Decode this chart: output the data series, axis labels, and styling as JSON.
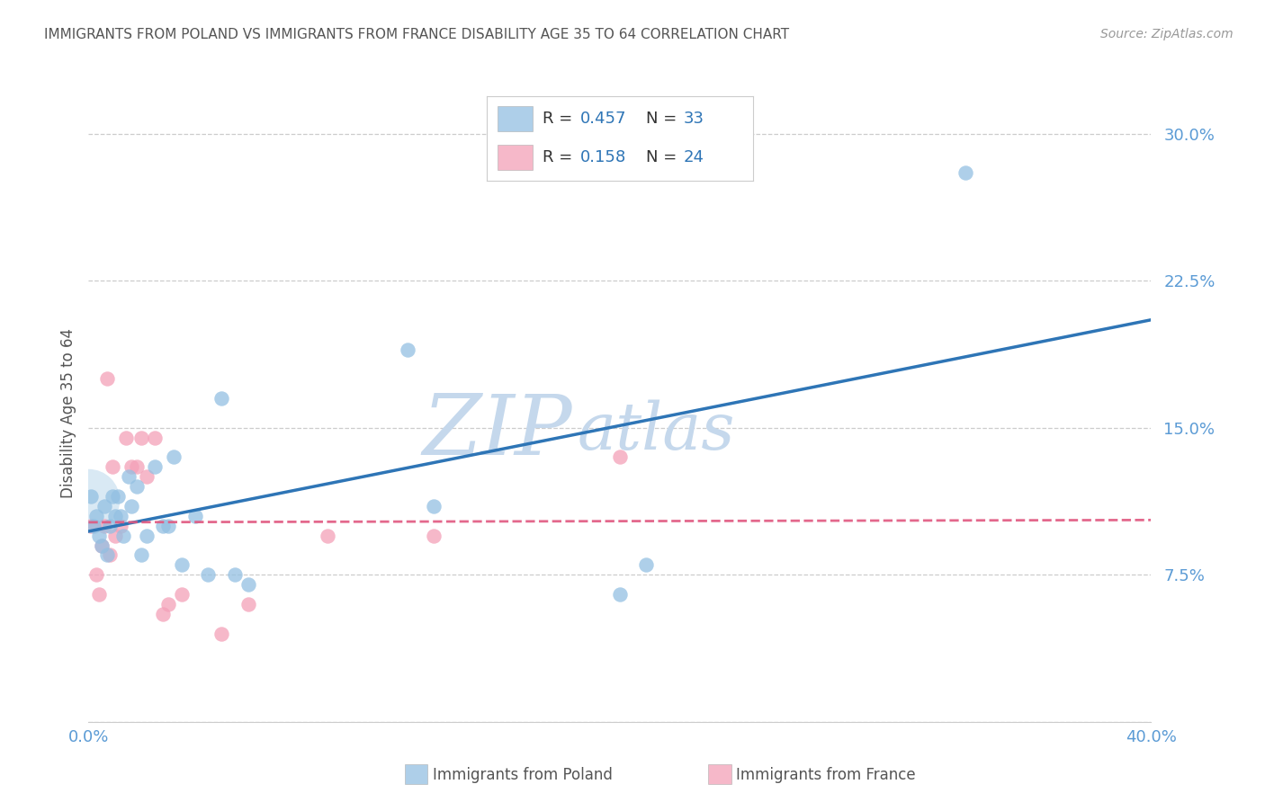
{
  "title": "IMMIGRANTS FROM POLAND VS IMMIGRANTS FROM FRANCE DISABILITY AGE 35 TO 64 CORRELATION CHART",
  "source": "Source: ZipAtlas.com",
  "ylabel": "Disability Age 35 to 64",
  "xlim": [
    0.0,
    0.4
  ],
  "ylim": [
    0.0,
    0.315
  ],
  "yticks": [
    0.0,
    0.075,
    0.15,
    0.225,
    0.3
  ],
  "ytick_labels": [
    "",
    "7.5%",
    "15.0%",
    "22.5%",
    "30.0%"
  ],
  "xticks": [
    0.0,
    0.05,
    0.1,
    0.15,
    0.2,
    0.25,
    0.3,
    0.35,
    0.4
  ],
  "xtick_labels": [
    "0.0%",
    "",
    "",
    "",
    "",
    "",
    "",
    "",
    "40.0%"
  ],
  "poland_x": [
    0.001,
    0.002,
    0.003,
    0.004,
    0.005,
    0.006,
    0.007,
    0.008,
    0.009,
    0.01,
    0.011,
    0.012,
    0.013,
    0.015,
    0.016,
    0.018,
    0.02,
    0.022,
    0.025,
    0.028,
    0.03,
    0.032,
    0.035,
    0.04,
    0.045,
    0.05,
    0.055,
    0.06,
    0.12,
    0.13,
    0.2,
    0.21,
    0.33
  ],
  "poland_y": [
    0.115,
    0.1,
    0.105,
    0.095,
    0.09,
    0.11,
    0.085,
    0.1,
    0.115,
    0.105,
    0.115,
    0.105,
    0.095,
    0.125,
    0.11,
    0.12,
    0.085,
    0.095,
    0.13,
    0.1,
    0.1,
    0.135,
    0.08,
    0.105,
    0.075,
    0.165,
    0.075,
    0.07,
    0.19,
    0.11,
    0.065,
    0.08,
    0.28
  ],
  "france_x": [
    0.001,
    0.003,
    0.004,
    0.005,
    0.006,
    0.007,
    0.008,
    0.009,
    0.01,
    0.012,
    0.014,
    0.016,
    0.018,
    0.02,
    0.022,
    0.025,
    0.028,
    0.03,
    0.035,
    0.05,
    0.06,
    0.09,
    0.13,
    0.2
  ],
  "france_y": [
    0.1,
    0.075,
    0.065,
    0.09,
    0.1,
    0.175,
    0.085,
    0.13,
    0.095,
    0.1,
    0.145,
    0.13,
    0.13,
    0.145,
    0.125,
    0.145,
    0.055,
    0.06,
    0.065,
    0.045,
    0.06,
    0.095,
    0.095,
    0.135
  ],
  "poland_color": "#93c0e2",
  "france_color": "#f4a0b8",
  "poland_line_color": "#2e75b6",
  "france_line_color": "#e05880",
  "bg_color": "#ffffff",
  "grid_color": "#cccccc",
  "title_color": "#555555",
  "source_color": "#999999",
  "ylabel_color": "#555555",
  "tick_color": "#5b9bd5",
  "watermark_zip_color": "#c5d8ec",
  "watermark_atlas_color": "#c5d8ec",
  "legend_R_color": "#2e75b6",
  "legend_N_color": "#2e75b6",
  "legend_label_color": "#333333",
  "bottom_label_poland": "Immigrants from Poland",
  "bottom_label_france": "Immigrants from France"
}
